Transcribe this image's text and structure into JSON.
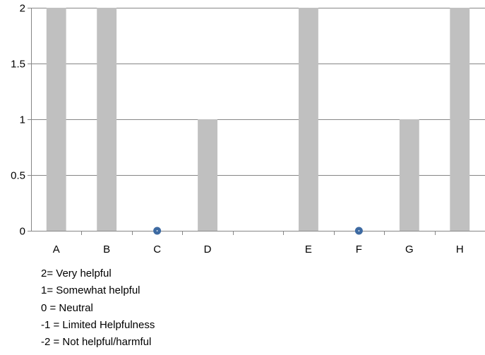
{
  "chart_data": {
    "type": "bar",
    "title": "",
    "xlabel": "",
    "ylabel": "",
    "categories": [
      "A",
      "B",
      "C",
      "D",
      "",
      "E",
      "F",
      "G",
      "H"
    ],
    "values": [
      2,
      2,
      0,
      1,
      null,
      2,
      0,
      1,
      2
    ],
    "zero_markers": [
      "C",
      "F"
    ],
    "ylim": [
      0,
      2
    ],
    "yticks": [
      "0",
      "0.5",
      "1",
      "1.5",
      "2"
    ],
    "ytick_values": [
      0,
      0.5,
      1,
      1.5,
      2
    ],
    "grid": true,
    "colors": {
      "bar": "#c0c0c0",
      "marker": "#3d6aa2",
      "grid": "#868686",
      "axis": "#868686"
    }
  },
  "legend": [
    "2= Very helpful",
    "1= Somewhat helpful",
    "0 = Neutral",
    "-1 = Limited Helpfulness",
    "-2 = Not helpful/harmful"
  ]
}
